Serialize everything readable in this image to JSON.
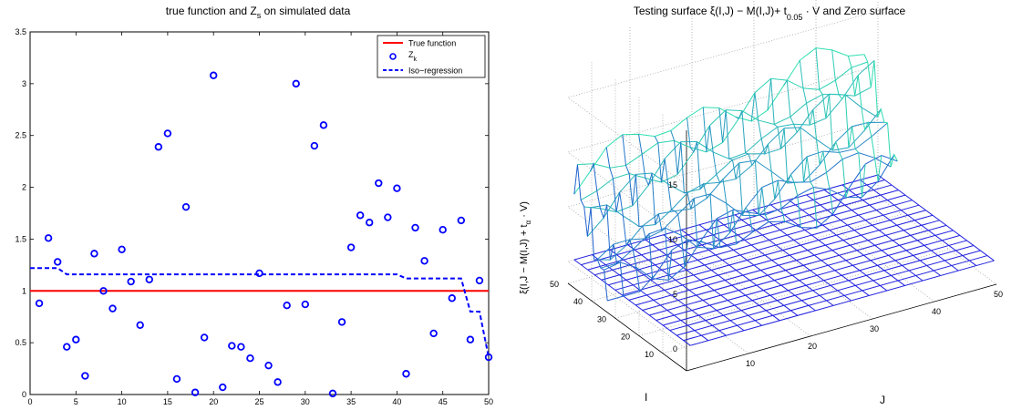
{
  "chart_data": [
    {
      "type": "scatter",
      "title": "true function and Z",
      "title_subscript": "s",
      "title_suffix": " on simulated data",
      "xlabel": "",
      "ylabel": "",
      "xlim": [
        0,
        50
      ],
      "ylim": [
        0,
        3.5
      ],
      "xticks": [
        0,
        5,
        10,
        15,
        20,
        25,
        30,
        35,
        40,
        45,
        50
      ],
      "yticks": [
        0,
        0.5,
        1,
        1.5,
        2,
        2.5,
        3,
        3.5
      ],
      "grid": false,
      "legend": {
        "position": "top-right",
        "entries": [
          {
            "label": "True function",
            "sub": ""
          },
          {
            "label": "Z",
            "sub": "k"
          },
          {
            "label": "Iso−regression",
            "sub": ""
          }
        ]
      },
      "colors": {
        "true_function": "#ff0000",
        "points": "#0000ff",
        "iso": "#0000ff"
      },
      "series": [
        {
          "name": "True function",
          "kind": "line",
          "x": [
            0,
            50
          ],
          "y": [
            1,
            1
          ]
        },
        {
          "name": "Z",
          "kind": "scatter",
          "x": [
            1,
            2,
            3,
            4,
            5,
            6,
            7,
            8,
            9,
            10,
            11,
            12,
            13,
            14,
            15,
            16,
            17,
            18,
            19,
            20,
            21,
            22,
            23,
            24,
            25,
            26,
            27,
            28,
            29,
            30,
            31,
            32,
            33,
            34,
            35,
            36,
            37,
            38,
            39,
            40,
            41,
            42,
            43,
            44,
            45,
            46,
            47,
            48,
            49,
            50
          ],
          "y": [
            0.88,
            1.51,
            1.28,
            0.46,
            0.53,
            0.18,
            1.36,
            1.0,
            0.83,
            1.4,
            1.09,
            0.67,
            1.11,
            2.39,
            2.52,
            0.15,
            1.81,
            0.02,
            0.55,
            3.08,
            0.07,
            0.47,
            0.46,
            0.35,
            1.17,
            0.28,
            0.12,
            0.86,
            3.0,
            0.87,
            2.4,
            2.6,
            0.01,
            0.7,
            1.42,
            1.73,
            1.66,
            2.04,
            1.71,
            1.99,
            0.2,
            1.61,
            1.29,
            0.59,
            1.59,
            0.93,
            1.68,
            0.53,
            1.1,
            0.36
          ]
        },
        {
          "name": "Iso−regression",
          "kind": "step",
          "x": [
            0,
            3,
            4,
            40,
            41,
            47,
            48,
            49,
            50
          ],
          "y": [
            1.22,
            1.22,
            1.16,
            1.16,
            1.12,
            1.12,
            0.8,
            0.8,
            0.36
          ]
        }
      ]
    },
    {
      "type": "surface",
      "title": "Testing surface ξ(I,J) − M(I,J)+ t",
      "title_subscript": "0.05",
      "title_suffix": " · V and Zero surface",
      "xlabel": "J",
      "ylabel": "I",
      "zlabel_main": "ξ(I,J − M(I,J) + t",
      "zlabel_sub": "α",
      "zlabel_suffix": " · V)",
      "xticks": [
        10,
        20,
        30,
        40,
        50
      ],
      "yticks": [
        10,
        20,
        30,
        40,
        50
      ],
      "zticks": [
        0,
        5,
        10,
        15
      ],
      "grid": true,
      "colors": {
        "zero_surface": "#2020e0",
        "testing_surface_low": "#2060d0",
        "testing_surface_high": "#30e0b0"
      },
      "series": [
        {
          "name": "Zero surface",
          "grid_n": 17,
          "z": 0
        },
        {
          "name": "Testing surface",
          "i_range": [
            36,
            50
          ],
          "j_range": [
            1,
            50
          ],
          "z_range": [
            -1,
            13
          ]
        }
      ]
    }
  ]
}
